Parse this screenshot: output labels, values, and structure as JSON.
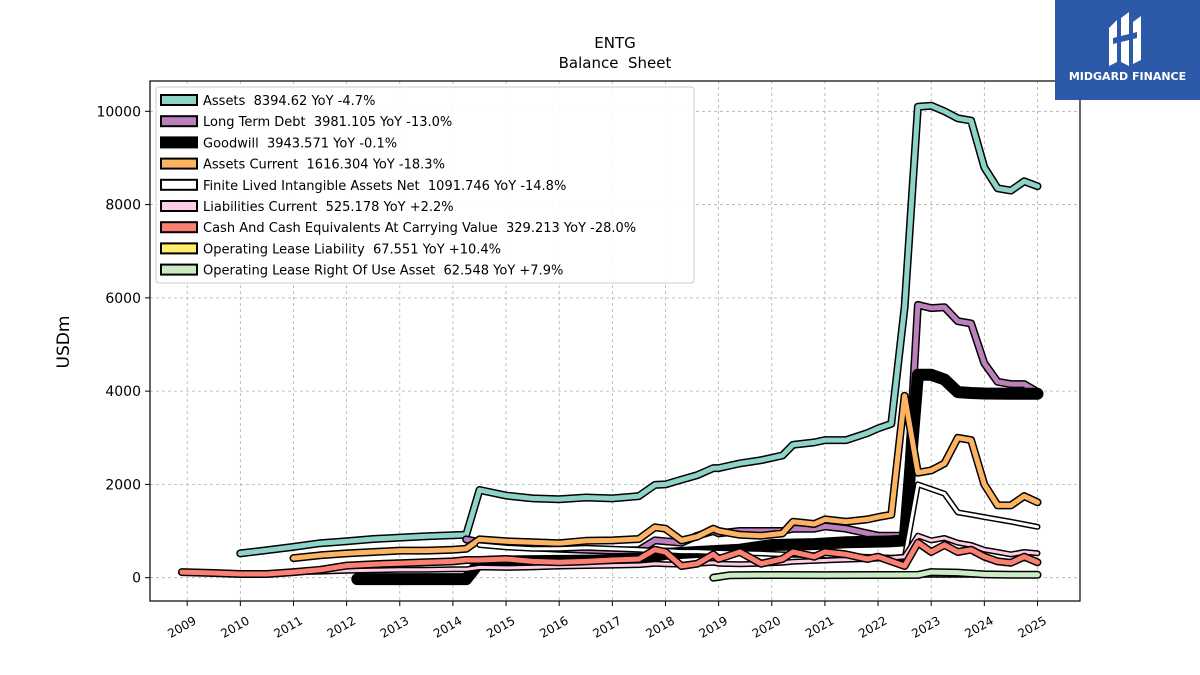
{
  "logo": {
    "text": "MIDGARD FINANCE",
    "background": "#2d5aa8"
  },
  "chart_data": {
    "type": "line",
    "title": "ENTG",
    "subtitle": "Balance  Sheet",
    "xlabel": "",
    "ylabel": "USDm",
    "xlim": [
      2008.3,
      2025.8
    ],
    "ylim": [
      -500,
      10650
    ],
    "x_ticks": [
      "2009",
      "2010",
      "2011",
      "2012",
      "2013",
      "2014",
      "2015",
      "2016",
      "2017",
      "2018",
      "2019",
      "2020",
      "2021",
      "2022",
      "2023",
      "2024",
      "2025"
    ],
    "y_ticks": [
      0,
      2000,
      4000,
      6000,
      8000,
      10000
    ],
    "y_tick_labels": [
      "0",
      "2000",
      "4000",
      "6000",
      "8000",
      "10000"
    ],
    "grid": true,
    "legend_position": "top-left",
    "series": [
      {
        "name": "Assets",
        "legend": "Assets  8394.62 YoY -4.7%",
        "color": "#8dd3c7",
        "width": 5,
        "points": [
          [
            2010,
            520
          ],
          [
            2010.5,
            590
          ],
          [
            2011,
            660
          ],
          [
            2011.5,
            740
          ],
          [
            2012,
            780
          ],
          [
            2012.5,
            830
          ],
          [
            2013,
            860
          ],
          [
            2013.5,
            890
          ],
          [
            2014,
            910
          ],
          [
            2014.25,
            920
          ],
          [
            2014.5,
            1880
          ],
          [
            2015,
            1760
          ],
          [
            2015.5,
            1700
          ],
          [
            2016,
            1680
          ],
          [
            2016.5,
            1720
          ],
          [
            2017,
            1700
          ],
          [
            2017.5,
            1750
          ],
          [
            2017.8,
            1990
          ],
          [
            2018,
            2000
          ],
          [
            2018.3,
            2100
          ],
          [
            2018.6,
            2200
          ],
          [
            2018.9,
            2350
          ],
          [
            2019,
            2350
          ],
          [
            2019.4,
            2450
          ],
          [
            2019.8,
            2520
          ],
          [
            2020.2,
            2620
          ],
          [
            2020.4,
            2850
          ],
          [
            2020.8,
            2900
          ],
          [
            2021,
            2950
          ],
          [
            2021.4,
            2950
          ],
          [
            2021.8,
            3100
          ],
          [
            2022,
            3200
          ],
          [
            2022.25,
            3300
          ],
          [
            2022.5,
            5800
          ],
          [
            2022.75,
            10100
          ],
          [
            2023,
            10120
          ],
          [
            2023.25,
            10000
          ],
          [
            2023.5,
            9850
          ],
          [
            2023.75,
            9800
          ],
          [
            2024,
            8800
          ],
          [
            2024.25,
            8350
          ],
          [
            2024.5,
            8300
          ],
          [
            2024.75,
            8500
          ],
          [
            2025,
            8394.62
          ]
        ]
      },
      {
        "name": "Long Term Debt",
        "legend": "Long Term Debt  3981.105 YoY -13.0%",
        "color": "#bc80bd",
        "width": 5,
        "points": [
          [
            2014.25,
            820
          ],
          [
            2014.5,
            760
          ],
          [
            2015,
            700
          ],
          [
            2015.5,
            650
          ],
          [
            2016,
            620
          ],
          [
            2016.5,
            600
          ],
          [
            2017,
            580
          ],
          [
            2017.5,
            590
          ],
          [
            2017.8,
            800
          ],
          [
            2018,
            780
          ],
          [
            2018.3,
            750
          ],
          [
            2018.6,
            900
          ],
          [
            2018.9,
            1000
          ],
          [
            2019,
            950
          ],
          [
            2019.4,
            1000
          ],
          [
            2019.8,
            1000
          ],
          [
            2020.2,
            1000
          ],
          [
            2020.4,
            1050
          ],
          [
            2020.8,
            1050
          ],
          [
            2021,
            1100
          ],
          [
            2021.4,
            1050
          ],
          [
            2021.8,
            950
          ],
          [
            2022,
            900
          ],
          [
            2022.25,
            900
          ],
          [
            2022.5,
            900
          ],
          [
            2022.75,
            5850
          ],
          [
            2023,
            5780
          ],
          [
            2023.25,
            5800
          ],
          [
            2023.5,
            5500
          ],
          [
            2023.75,
            5450
          ],
          [
            2024,
            4600
          ],
          [
            2024.25,
            4200
          ],
          [
            2024.5,
            4150
          ],
          [
            2024.75,
            4150
          ],
          [
            2025,
            3981.105
          ]
        ]
      },
      {
        "name": "Goodwill",
        "legend": "Goodwill  3943.571 YoY -0.1%",
        "color": "#000000",
        "width": 9,
        "points": [
          [
            2012.2,
            -30
          ],
          [
            2013,
            -30
          ],
          [
            2014.25,
            -30
          ],
          [
            2014.5,
            330
          ],
          [
            2015,
            350
          ],
          [
            2016,
            360
          ],
          [
            2017,
            370
          ],
          [
            2017.5,
            400
          ],
          [
            2018,
            510
          ],
          [
            2018.6,
            550
          ],
          [
            2019.4,
            600
          ],
          [
            2020,
            700
          ],
          [
            2020.8,
            720
          ],
          [
            2021.4,
            760
          ],
          [
            2022.25,
            780
          ],
          [
            2022.5,
            800
          ],
          [
            2022.75,
            4350
          ],
          [
            2023,
            4350
          ],
          [
            2023.25,
            4250
          ],
          [
            2023.5,
            3980
          ],
          [
            2023.75,
            3960
          ],
          [
            2024,
            3950
          ],
          [
            2024.5,
            3945
          ],
          [
            2025,
            3943.571
          ]
        ]
      },
      {
        "name": "Assets Current",
        "legend": "Assets Current  1616.304 YoY -18.3%",
        "color": "#fdb462",
        "width": 5,
        "points": [
          [
            2011,
            420
          ],
          [
            2011.5,
            480
          ],
          [
            2012,
            520
          ],
          [
            2012.5,
            550
          ],
          [
            2013,
            580
          ],
          [
            2013.5,
            580
          ],
          [
            2014,
            600
          ],
          [
            2014.25,
            620
          ],
          [
            2014.5,
            820
          ],
          [
            2015,
            780
          ],
          [
            2015.5,
            760
          ],
          [
            2016,
            740
          ],
          [
            2016.5,
            790
          ],
          [
            2017,
            800
          ],
          [
            2017.5,
            830
          ],
          [
            2017.8,
            1080
          ],
          [
            2018,
            1050
          ],
          [
            2018.3,
            800
          ],
          [
            2018.6,
            880
          ],
          [
            2018.9,
            1050
          ],
          [
            2019,
            1000
          ],
          [
            2019.4,
            920
          ],
          [
            2019.8,
            900
          ],
          [
            2020.2,
            950
          ],
          [
            2020.4,
            1200
          ],
          [
            2020.8,
            1150
          ],
          [
            2021,
            1250
          ],
          [
            2021.4,
            1200
          ],
          [
            2021.8,
            1250
          ],
          [
            2022,
            1300
          ],
          [
            2022.25,
            1350
          ],
          [
            2022.5,
            3900
          ],
          [
            2022.75,
            2250
          ],
          [
            2023,
            2300
          ],
          [
            2023.25,
            2450
          ],
          [
            2023.5,
            3000
          ],
          [
            2023.75,
            2950
          ],
          [
            2024,
            2000
          ],
          [
            2024.25,
            1550
          ],
          [
            2024.5,
            1550
          ],
          [
            2024.75,
            1750
          ],
          [
            2025,
            1616.304
          ]
        ]
      },
      {
        "name": "Finite Lived Intangible Assets Net",
        "legend": "Finite Lived Intangible Assets Net  1091.746 YoY -14.8%",
        "color": "#ffffff",
        "width": 3,
        "points": [
          [
            2014.5,
            700
          ],
          [
            2015,
            650
          ],
          [
            2015.5,
            620
          ],
          [
            2016,
            620
          ],
          [
            2016.5,
            640
          ],
          [
            2017,
            620
          ],
          [
            2017.5,
            600
          ],
          [
            2017.8,
            580
          ],
          [
            2018,
            580
          ],
          [
            2018.3,
            560
          ],
          [
            2018.6,
            560
          ],
          [
            2019,
            540
          ],
          [
            2019.4,
            530
          ],
          [
            2019.8,
            520
          ],
          [
            2020.2,
            500
          ],
          [
            2020.8,
            480
          ],
          [
            2021.4,
            460
          ],
          [
            2022,
            440
          ],
          [
            2022.5,
            420
          ],
          [
            2022.75,
            2000
          ],
          [
            2023,
            1900
          ],
          [
            2023.25,
            1800
          ],
          [
            2023.5,
            1400
          ],
          [
            2023.75,
            1350
          ],
          [
            2024,
            1300
          ],
          [
            2024.5,
            1200
          ],
          [
            2025,
            1091.746
          ]
        ]
      },
      {
        "name": "Liabilities Current",
        "legend": "Liabilities Current  525.178 YoY +2.2%",
        "color": "#fccde5",
        "width": 3,
        "points": [
          [
            2011,
            120
          ],
          [
            2011.5,
            130
          ],
          [
            2012,
            150
          ],
          [
            2012.5,
            160
          ],
          [
            2013,
            170
          ],
          [
            2013.5,
            170
          ],
          [
            2014,
            180
          ],
          [
            2014.25,
            180
          ],
          [
            2014.5,
            220
          ],
          [
            2015,
            210
          ],
          [
            2015.5,
            220
          ],
          [
            2016,
            240
          ],
          [
            2016.5,
            250
          ],
          [
            2017,
            260
          ],
          [
            2017.5,
            270
          ],
          [
            2017.8,
            300
          ],
          [
            2018,
            290
          ],
          [
            2018.3,
            280
          ],
          [
            2018.6,
            300
          ],
          [
            2018.9,
            320
          ],
          [
            2019,
            300
          ],
          [
            2019.4,
            290
          ],
          [
            2019.8,
            300
          ],
          [
            2020.2,
            320
          ],
          [
            2020.4,
            340
          ],
          [
            2020.8,
            360
          ],
          [
            2021.2,
            380
          ],
          [
            2021.8,
            400
          ],
          [
            2022.2,
            420
          ],
          [
            2022.5,
            450
          ],
          [
            2022.75,
            900
          ],
          [
            2023,
            800
          ],
          [
            2023.25,
            850
          ],
          [
            2023.5,
            750
          ],
          [
            2023.75,
            700
          ],
          [
            2024,
            600
          ],
          [
            2024.25,
            550
          ],
          [
            2024.5,
            500
          ],
          [
            2024.75,
            550
          ],
          [
            2025,
            525.178
          ]
        ]
      },
      {
        "name": "Cash And Cash Equivalents At Carrying Value",
        "legend": "Cash And Cash Equivalents At Carrying Value  329.213 YoY -28.0%",
        "color": "#fb8072",
        "width": 5,
        "points": [
          [
            2008.9,
            120
          ],
          [
            2009.5,
            100
          ],
          [
            2010,
            80
          ],
          [
            2010.5,
            80
          ],
          [
            2011,
            120
          ],
          [
            2011.5,
            170
          ],
          [
            2012,
            260
          ],
          [
            2012.5,
            290
          ],
          [
            2013,
            310
          ],
          [
            2013.5,
            330
          ],
          [
            2014,
            350
          ],
          [
            2014.25,
            380
          ],
          [
            2014.5,
            380
          ],
          [
            2015,
            400
          ],
          [
            2015.5,
            350
          ],
          [
            2016,
            330
          ],
          [
            2016.5,
            350
          ],
          [
            2017,
            380
          ],
          [
            2017.5,
            400
          ],
          [
            2017.8,
            600
          ],
          [
            2018,
            550
          ],
          [
            2018.3,
            250
          ],
          [
            2018.6,
            300
          ],
          [
            2018.9,
            500
          ],
          [
            2019,
            400
          ],
          [
            2019.4,
            550
          ],
          [
            2019.8,
            300
          ],
          [
            2020.2,
            400
          ],
          [
            2020.4,
            550
          ],
          [
            2020.8,
            450
          ],
          [
            2021,
            550
          ],
          [
            2021.4,
            500
          ],
          [
            2021.8,
            400
          ],
          [
            2022,
            450
          ],
          [
            2022.25,
            350
          ],
          [
            2022.5,
            250
          ],
          [
            2022.75,
            750
          ],
          [
            2023,
            550
          ],
          [
            2023.25,
            700
          ],
          [
            2023.5,
            550
          ],
          [
            2023.75,
            600
          ],
          [
            2024,
            450
          ],
          [
            2024.25,
            350
          ],
          [
            2024.5,
            320
          ],
          [
            2024.75,
            450
          ],
          [
            2025,
            329.213
          ]
        ]
      },
      {
        "name": "Operating Lease Liability",
        "legend": "Operating Lease Liability  67.551 YoY +10.4%",
        "color": "#ffed6f",
        "width": 3,
        "points": [
          [
            2018.9,
            20
          ],
          [
            2019.2,
            60
          ],
          [
            2020,
            62
          ],
          [
            2021,
            60
          ],
          [
            2022,
            61
          ],
          [
            2023,
            62
          ],
          [
            2024,
            63
          ],
          [
            2025,
            67.551
          ]
        ]
      },
      {
        "name": "Operating Lease Right Of Use Asset",
        "legend": "Operating Lease Right Of Use Asset  62.548 YoY +7.9%",
        "color": "#ccebc5",
        "width": 5,
        "points": [
          [
            2018.9,
            0
          ],
          [
            2019.2,
            50
          ],
          [
            2020,
            58
          ],
          [
            2021,
            55
          ],
          [
            2022,
            58
          ],
          [
            2022.75,
            60
          ],
          [
            2023,
            120
          ],
          [
            2023.5,
            110
          ],
          [
            2024,
            70
          ],
          [
            2024.5,
            62
          ],
          [
            2025,
            62.548
          ]
        ]
      }
    ]
  }
}
